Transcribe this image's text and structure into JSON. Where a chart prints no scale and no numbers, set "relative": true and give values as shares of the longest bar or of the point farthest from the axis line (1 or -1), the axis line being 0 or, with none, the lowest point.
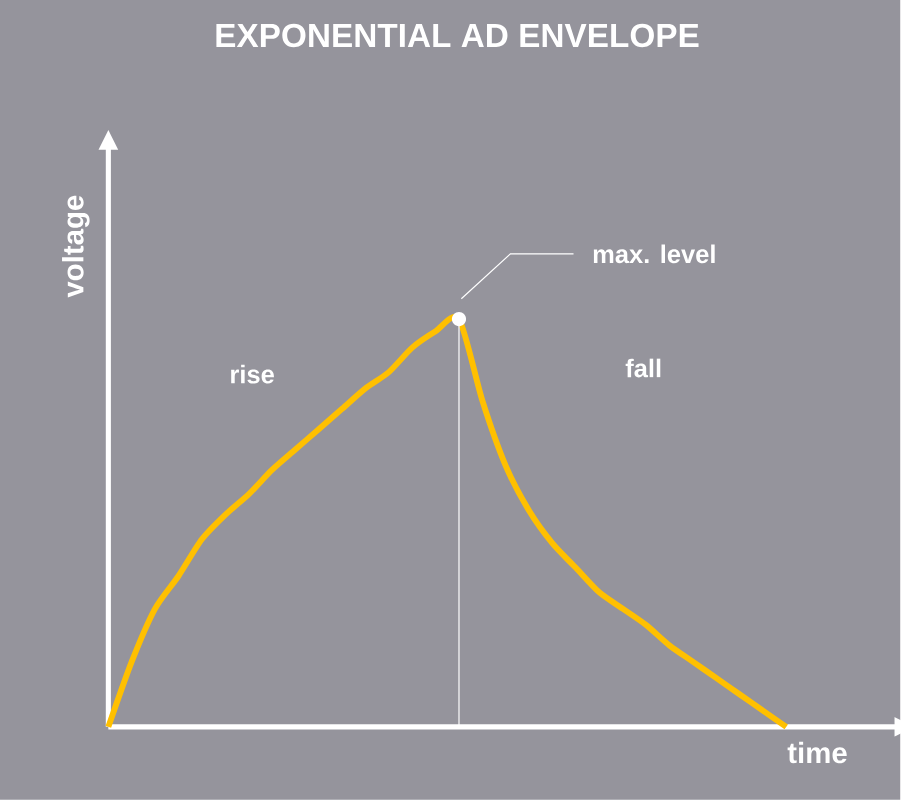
{
  "chart_data": {
    "type": "line",
    "title": "EXPONENTIAL AD ENVELOPE",
    "xlabel": "time",
    "ylabel": "voltage",
    "relative": true,
    "color": "#ffc000",
    "categories": [
      null,
      null,
      null,
      null,
      null,
      null,
      null,
      null,
      null,
      null,
      null,
      null,
      null,
      null,
      null,
      null,
      null,
      null,
      null,
      null,
      null,
      null,
      null,
      null,
      null,
      null,
      null,
      null,
      null,
      null,
      null,
      null,
      null,
      null
    ],
    "values": [
      0,
      0.16,
      0.29,
      0.37,
      0.46,
      0.52,
      0.57,
      0.63,
      0.68,
      0.73,
      0.78,
      0.83,
      0.87,
      0.93,
      0.97,
      1,
      0.8,
      0.64,
      0.53,
      0.45,
      0.39,
      0.33,
      0.29,
      0.25,
      0.2,
      0.16,
      0.12,
      0.08,
      0.04,
      0,
      null,
      null,
      null,
      null
    ],
    "annotations": [
      "max. level",
      "rise",
      "fall"
    ]
  }
}
